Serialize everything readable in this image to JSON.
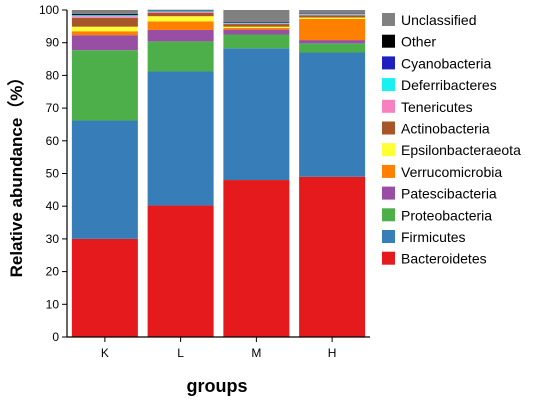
{
  "chart_data": {
    "type": "bar",
    "stacked": true,
    "xlabel": "groups",
    "ylabel": "Relative abundance（%）",
    "ylim": [
      0,
      100
    ],
    "yticks": [
      0,
      10,
      20,
      30,
      40,
      50,
      60,
      70,
      80,
      90,
      100
    ],
    "categories": [
      "K",
      "L",
      "M",
      "H"
    ],
    "legend_position": "right",
    "series": [
      {
        "name": "Bacteroidetes",
        "color": "#e41a1c",
        "values": [
          30.0,
          40.2,
          48.0,
          49.0
        ]
      },
      {
        "name": "Firmicutes",
        "color": "#377eb8",
        "values": [
          36.2,
          41.0,
          40.3,
          38.0
        ]
      },
      {
        "name": "Proteobacteria",
        "color": "#4daf4a",
        "values": [
          21.5,
          9.2,
          4.2,
          2.8
        ]
      },
      {
        "name": "Patescibacteria",
        "color": "#984ea3",
        "values": [
          4.6,
          3.5,
          1.5,
          1.0
        ]
      },
      {
        "name": "Verrucomicrobia",
        "color": "#ff7f00",
        "values": [
          1.2,
          2.6,
          0.5,
          6.5
        ]
      },
      {
        "name": "Epsilonbacteraeota",
        "color": "#ffff33",
        "values": [
          1.4,
          1.6,
          0.4,
          0.4
        ]
      },
      {
        "name": "Actinobacteria",
        "color": "#a65628",
        "values": [
          2.7,
          1.0,
          0.8,
          0.7
        ]
      },
      {
        "name": "Tenericutes",
        "color": "#f781bf",
        "values": [
          0.5,
          0.3,
          0.2,
          0.2
        ]
      },
      {
        "name": "Deferribacteres",
        "color": "#19f0f0",
        "values": [
          0.3,
          0.2,
          0.2,
          0.2
        ]
      },
      {
        "name": "Cyanobacteria",
        "color": "#2020c0",
        "values": [
          0.1,
          0.1,
          0.1,
          0.1
        ]
      },
      {
        "name": "Other",
        "color": "#000000",
        "values": [
          0.3,
          0.1,
          0.2,
          0.1
        ]
      },
      {
        "name": "Unclassified",
        "color": "#808080",
        "values": [
          1.2,
          0.3,
          3.6,
          1.0
        ]
      }
    ],
    "legend_order": [
      "Unclassified",
      "Other",
      "Cyanobacteria",
      "Deferribacteres",
      "Tenericutes",
      "Actinobacteria",
      "Epsilonbacteraeota",
      "Verrucomicrobia",
      "Patescibacteria",
      "Proteobacteria",
      "Firmicutes",
      "Bacteroidetes"
    ]
  }
}
